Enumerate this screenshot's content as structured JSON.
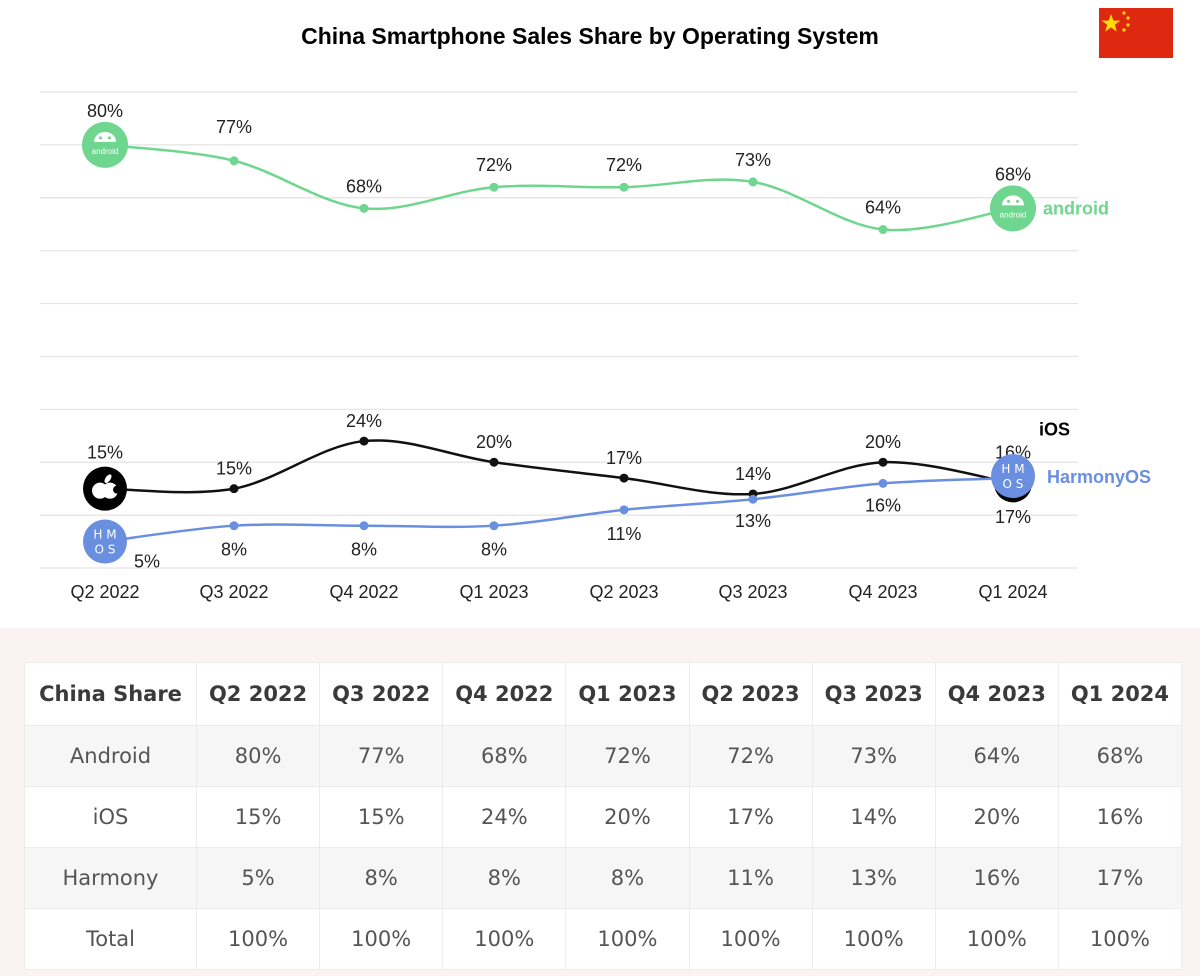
{
  "chart_data": {
    "type": "line",
    "title": "China Smartphone Sales Share by Operating System",
    "categories": [
      "Q2 2022",
      "Q3 2022",
      "Q4 2022",
      "Q1 2023",
      "Q2 2023",
      "Q3 2023",
      "Q4 2023",
      "Q1 2024"
    ],
    "ylim": [
      0,
      90
    ],
    "grid": true,
    "series": [
      {
        "name": "android",
        "color": "#6ed68e",
        "values": [
          80,
          77,
          68,
          72,
          72,
          73,
          64,
          68
        ],
        "labels": [
          "80%",
          "77%",
          "68%",
          "72%",
          "72%",
          "73%",
          "64%",
          "68%"
        ]
      },
      {
        "name": "iOS",
        "color": "#111111",
        "values": [
          15,
          15,
          24,
          20,
          17,
          14,
          20,
          16
        ],
        "labels": [
          "15%",
          "15%",
          "24%",
          "20%",
          "17%",
          "14%",
          "20%",
          "16%"
        ]
      },
      {
        "name": "HarmonyOS",
        "color": "#6a8ee0",
        "values": [
          5,
          8,
          8,
          8,
          11,
          13,
          16,
          17
        ],
        "labels": [
          "5%",
          "8%",
          "8%",
          "8%",
          "11%",
          "13%",
          "16%",
          "17%"
        ]
      }
    ],
    "marker_icons": {
      "android": {
        "text": "android",
        "icon": "android-robot-icon"
      },
      "iOS": {
        "icon": "apple-logo-icon"
      },
      "HarmonyOS": {
        "text_top": "H M",
        "text_bottom": "O S",
        "icon": "hmos-icon"
      }
    },
    "flag_icon": "china-flag-icon"
  },
  "table": {
    "headers": [
      "China Share",
      "Q2 2022",
      "Q3 2022",
      "Q4 2022",
      "Q1 2023",
      "Q2 2023",
      "Q3 2023",
      "Q4 2023",
      "Q1 2024"
    ],
    "rows": [
      [
        "Android",
        "80%",
        "77%",
        "68%",
        "72%",
        "72%",
        "73%",
        "64%",
        "68%"
      ],
      [
        "iOS",
        "15%",
        "15%",
        "24%",
        "20%",
        "17%",
        "14%",
        "20%",
        "16%"
      ],
      [
        "Harmony",
        "5%",
        "8%",
        "8%",
        "8%",
        "11%",
        "13%",
        "16%",
        "17%"
      ],
      [
        "Total",
        "100%",
        "100%",
        "100%",
        "100%",
        "100%",
        "100%",
        "100%",
        "100%"
      ]
    ]
  }
}
